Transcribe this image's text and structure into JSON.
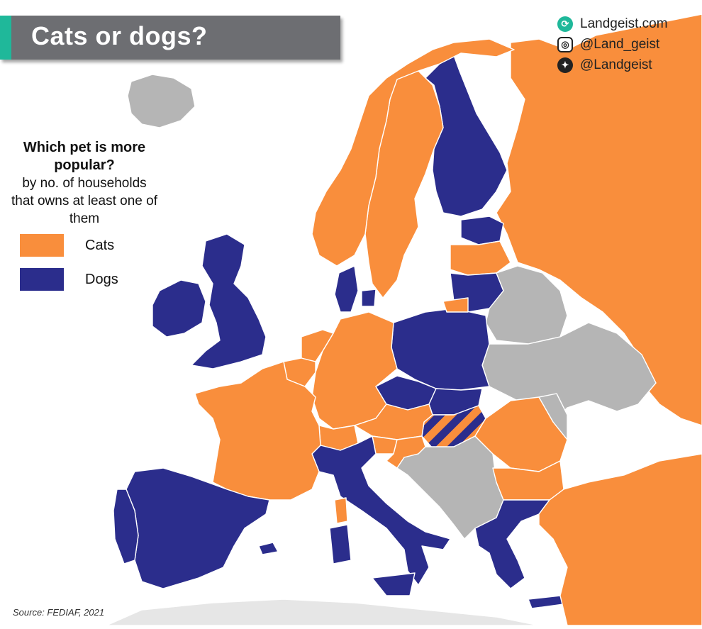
{
  "title": "Cats or dogs?",
  "branding": [
    {
      "icon": "globe-icon",
      "text": "Landgeist.com"
    },
    {
      "icon": "instagram-icon",
      "text": "@Land_geist"
    },
    {
      "icon": "twitter-icon",
      "text": "@Landgeist"
    }
  ],
  "legend": {
    "heading": "Which pet is more popular?",
    "subtitle": "by no. of households that owns at least one of them",
    "items": [
      {
        "label": "Cats",
        "color": "#f98e3c"
      },
      {
        "label": "Dogs",
        "color": "#2b2d8c"
      }
    ]
  },
  "source": "Source: FEDIAF, 2021",
  "colors": {
    "cats": "#f98e3c",
    "dogs": "#2b2d8c",
    "no_data": "#b5b5b5",
    "sea": "#ffffff",
    "title_bar": "#6d6e72",
    "accent": "#1fb89a"
  },
  "countries": {
    "cats": [
      "Norway",
      "Sweden",
      "Russia",
      "Latvia",
      "Germany",
      "Netherlands",
      "Belgium",
      "Luxembourg",
      "France",
      "Switzerland",
      "Austria",
      "Slovenia",
      "Croatia",
      "Romania",
      "Bulgaria",
      "Turkey",
      "Lithuania (Kaliningrad region shown as cats)"
    ],
    "dogs": [
      "Finland",
      "Estonia",
      "Lithuania",
      "Poland",
      "Czechia",
      "Slovakia",
      "Denmark",
      "United Kingdom",
      "Ireland",
      "Spain",
      "Portugal",
      "Italy",
      "Greece",
      "Malta"
    ],
    "tie": [
      "Hungary"
    ],
    "no_data": [
      "Iceland",
      "Belarus",
      "Ukraine",
      "Moldova",
      "Serbia",
      "Bosnia and Herzegovina",
      "Montenegro",
      "Albania",
      "North Macedonia",
      "Kosovo"
    ]
  }
}
